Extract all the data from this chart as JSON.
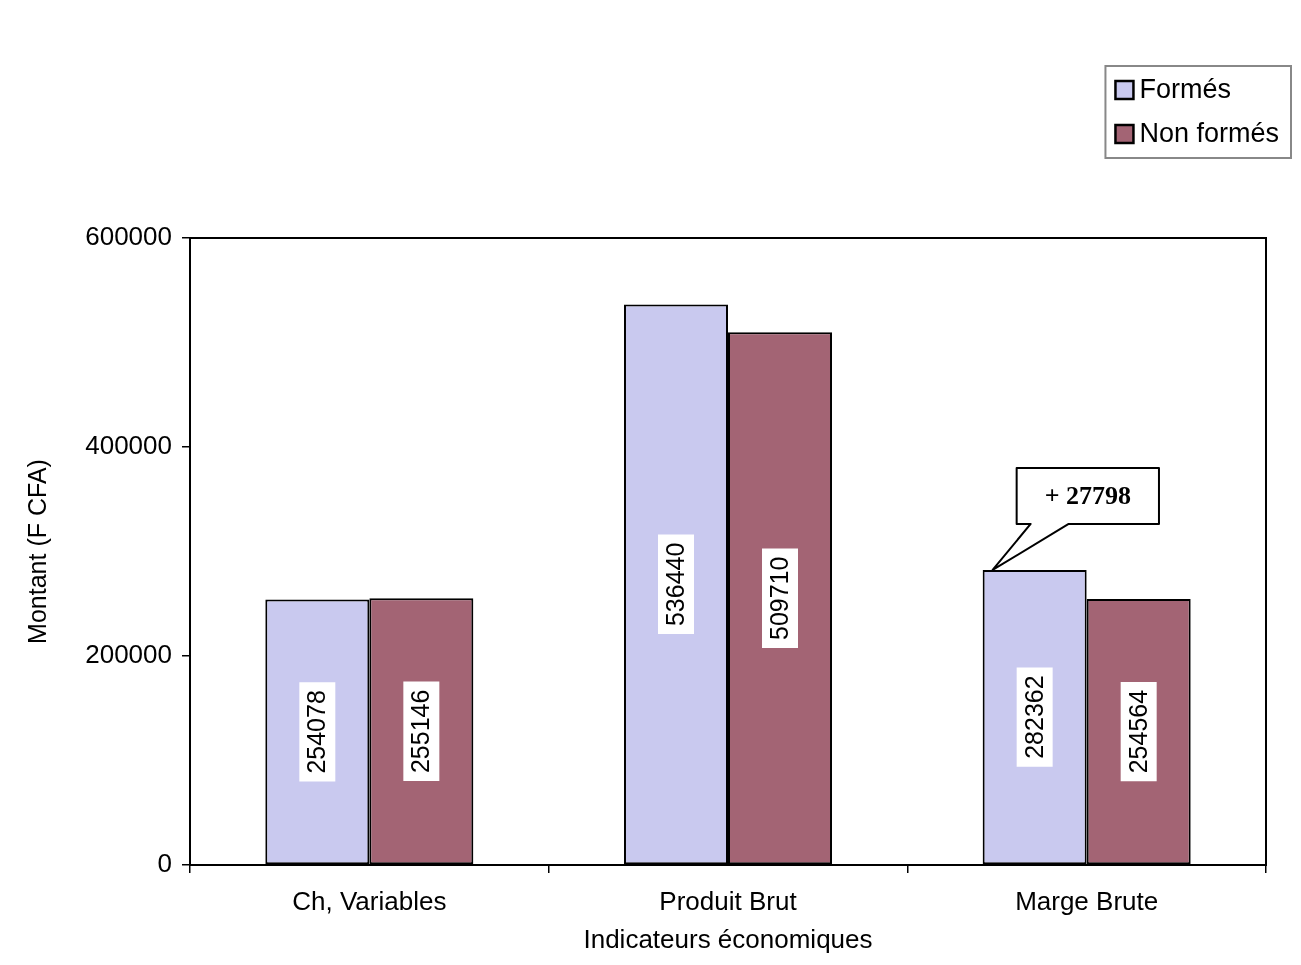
{
  "chart_data": {
    "type": "bar",
    "categories": [
      "Ch, Variables",
      "Produit Brut",
      "Marge Brute"
    ],
    "series": [
      {
        "name": "Formés",
        "color": "#c9c9ef",
        "values": [
          254078,
          536440,
          282362
        ]
      },
      {
        "name": "Non formés",
        "color": "#a36474",
        "values": [
          255146,
          509710,
          254564
        ]
      }
    ],
    "xlabel": "Indicateurs économiques",
    "ylabel": "Montant (F CFA)",
    "ylim": [
      0,
      600000
    ],
    "yticks": [
      0,
      200000,
      400000,
      600000
    ],
    "grid": false,
    "legend": "top right",
    "data_labels": true,
    "annotations": [
      {
        "text": "+ 27798",
        "x": "Marge Brute",
        "y": 282362
      }
    ]
  }
}
